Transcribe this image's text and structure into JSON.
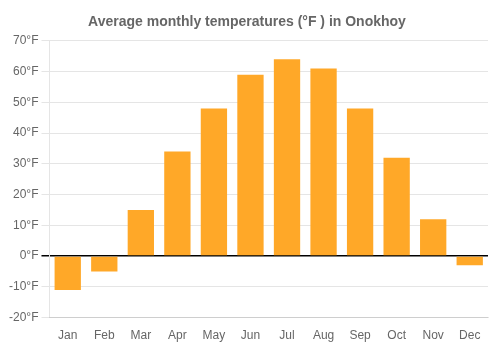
{
  "chart_data": {
    "type": "bar",
    "title": "Average monthly temperatures (°F ) in Onokhoy",
    "categories": [
      "Jan",
      "Feb",
      "Mar",
      "Apr",
      "May",
      "Jun",
      "Jul",
      "Aug",
      "Sep",
      "Oct",
      "Nov",
      "Dec"
    ],
    "values": [
      -11,
      -5,
      15,
      34,
      48,
      59,
      64,
      61,
      48,
      32,
      12,
      -3
    ],
    "color": "#FFA828",
    "ylim": [
      -20,
      70
    ],
    "yticks": [
      {
        "value": -20,
        "label": "-20°F"
      },
      {
        "value": -10,
        "label": "-10°F"
      },
      {
        "value": 0,
        "label": "0°F"
      },
      {
        "value": 10,
        "label": "10°F"
      },
      {
        "value": 20,
        "label": "20°F"
      },
      {
        "value": 30,
        "label": "30°F"
      },
      {
        "value": 40,
        "label": "40°F"
      },
      {
        "value": 50,
        "label": "50°F"
      },
      {
        "value": 60,
        "label": "60°F"
      },
      {
        "value": 70,
        "label": "70°F"
      }
    ],
    "grid": true
  }
}
